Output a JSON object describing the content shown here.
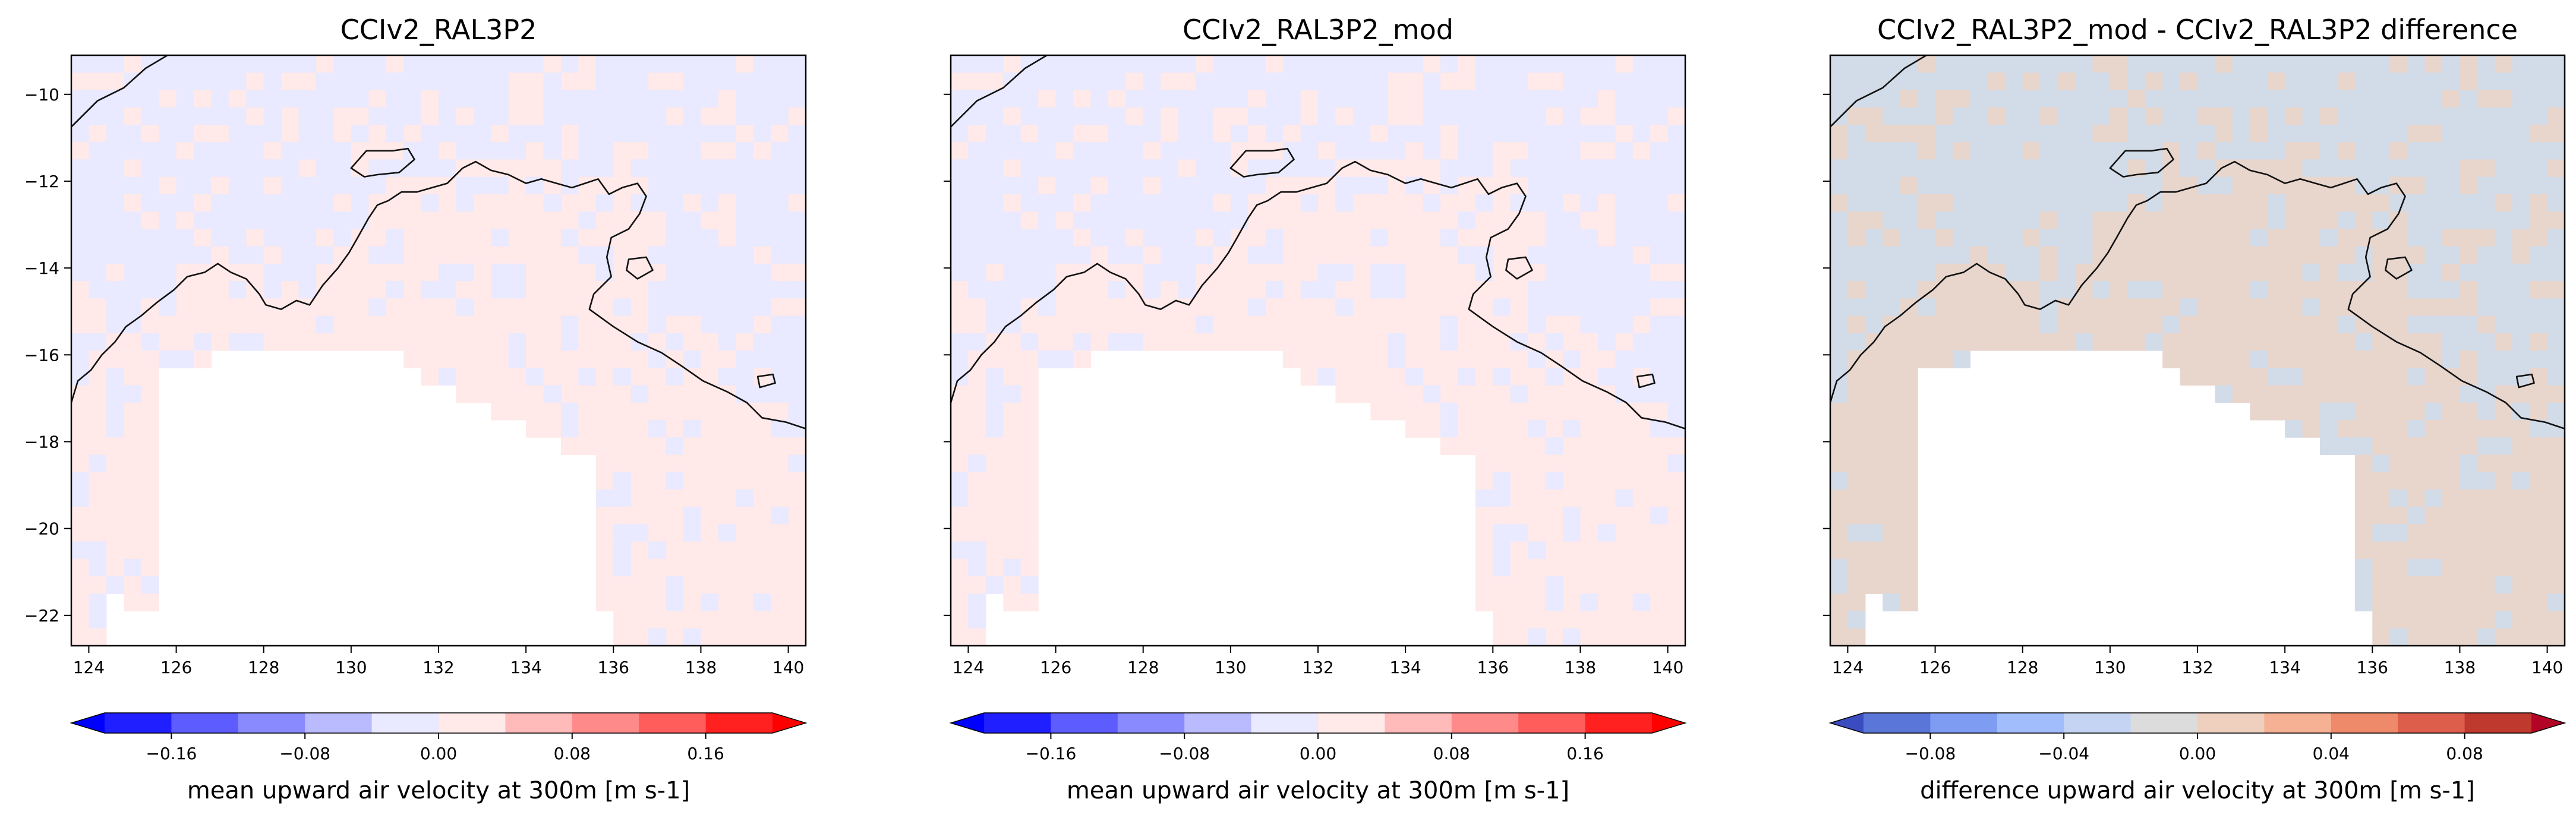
{
  "chart_data": [
    {
      "type": "heatmap",
      "title": "CCIv2_RAL3P2",
      "xlim": [
        123.6,
        140.4
      ],
      "ylim": [
        -22.7,
        -9.1
      ],
      "xticks": [
        "124",
        "126",
        "128",
        "130",
        "132",
        "134",
        "136",
        "138",
        "140"
      ],
      "yticks": [
        "−10",
        "−12",
        "−14",
        "−16",
        "−18",
        "−20",
        "−22"
      ],
      "y_tick_labels_shown": true,
      "colorbar": {
        "label": "mean upward air velocity at 300m [m s-1]",
        "range": [
          -0.2,
          0.2
        ],
        "ticks": [
          "−0.16",
          "−0.08",
          "0.00",
          "0.08",
          "0.16"
        ],
        "tick_values": [
          -0.16,
          -0.08,
          0.0,
          0.08,
          0.16
        ],
        "colors": [
          "#1f1fff",
          "#5c5cff",
          "#8a8aff",
          "#babaff",
          "#e9e9ff",
          "#ffe9e9",
          "#ffbaba",
          "#ff8a8a",
          "#ff5c5c",
          "#ff2020"
        ],
        "extend": "both",
        "extend_low": "#0000ff",
        "extend_high": "#ff0000"
      },
      "field_colors": {
        "dominant_north": "#e9e9ff",
        "dominant_south": "#ffe9e9"
      }
    },
    {
      "type": "heatmap",
      "title": "CCIv2_RAL3P2_mod",
      "xlim": [
        123.6,
        140.4
      ],
      "ylim": [
        -22.7,
        -9.1
      ],
      "xticks": [
        "124",
        "126",
        "128",
        "130",
        "132",
        "134",
        "136",
        "138",
        "140"
      ],
      "yticks": [],
      "y_tick_labels_shown": false,
      "colorbar": {
        "label": "mean upward air velocity at 300m [m s-1]",
        "range": [
          -0.2,
          0.2
        ],
        "ticks": [
          "−0.16",
          "−0.08",
          "0.00",
          "0.08",
          "0.16"
        ],
        "tick_values": [
          -0.16,
          -0.08,
          0.0,
          0.08,
          0.16
        ],
        "colors": [
          "#1f1fff",
          "#5c5cff",
          "#8a8aff",
          "#babaff",
          "#e9e9ff",
          "#ffe9e9",
          "#ffbaba",
          "#ff8a8a",
          "#ff5c5c",
          "#ff2020"
        ],
        "extend": "both",
        "extend_low": "#0000ff",
        "extend_high": "#ff0000"
      },
      "field_colors": {
        "dominant_north": "#e9e9ff",
        "dominant_south": "#ffe9e9"
      }
    },
    {
      "type": "heatmap",
      "title": "CCIv2_RAL3P2_mod - CCIv2_RAL3P2 difference",
      "xlim": [
        123.6,
        140.4
      ],
      "ylim": [
        -22.7,
        -9.1
      ],
      "xticks": [
        "124",
        "126",
        "128",
        "130",
        "132",
        "134",
        "136",
        "138",
        "140"
      ],
      "yticks": [],
      "y_tick_labels_shown": false,
      "colorbar": {
        "label": "difference upward air velocity at 300m [m s-1]",
        "range": [
          -0.1,
          0.1
        ],
        "ticks": [
          "−0.08",
          "−0.04",
          "0.00",
          "0.04",
          "0.08"
        ],
        "tick_values": [
          -0.08,
          -0.04,
          0.0,
          0.04,
          0.08
        ],
        "colors": [
          "#5b76d9",
          "#7e9df2",
          "#a2bdfb",
          "#c4d4f2",
          "#dddcdc",
          "#efcfbd",
          "#f6b093",
          "#ee8a69",
          "#dc5e4b",
          "#c0392e"
        ],
        "extend": "both",
        "extend_low": "#3b4cc0",
        "extend_high": "#b40426"
      },
      "field_colors": {
        "dominant_north": "#d2dbe8",
        "dominant_south": "#e8d6cd"
      }
    }
  ]
}
